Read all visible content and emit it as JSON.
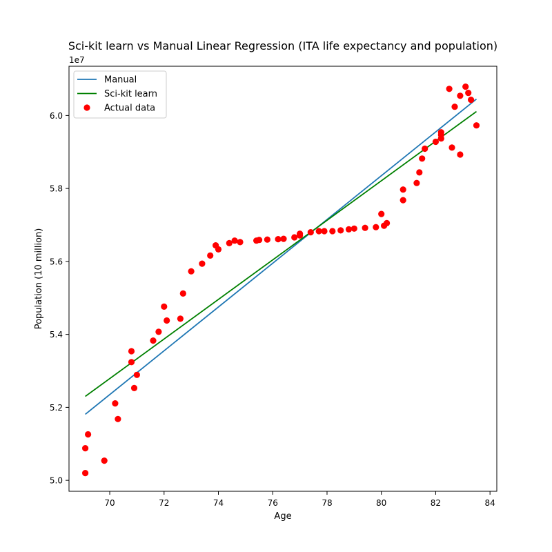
{
  "chart_data": {
    "type": "scatter",
    "title": "Sci-kit learn vs Manual Linear Regression (ITA life expectancy and population)",
    "xlabel": "Age",
    "ylabel": "Population (10 million)",
    "y_offset_label": "1e7",
    "xlim": [
      68.5,
      84.25
    ],
    "ylim": [
      4.97,
      6.135
    ],
    "x_ticks": [
      70,
      72,
      74,
      76,
      78,
      80,
      82,
      84
    ],
    "x_tick_labels": [
      "70",
      "72",
      "74",
      "76",
      "78",
      "80",
      "82",
      "84"
    ],
    "y_ticks": [
      5.0,
      5.2,
      5.4,
      5.6,
      5.8,
      6.0
    ],
    "y_tick_labels": [
      "5.0",
      "5.2",
      "5.4",
      "5.6",
      "5.8",
      "6.0"
    ],
    "grid": false,
    "legend_position": "top-left",
    "series": [
      {
        "name": "Manual",
        "kind": "line",
        "color": "#1f77b4",
        "x": [
          69.1,
          83.5
        ],
        "y": [
          5.181,
          6.045
        ]
      },
      {
        "name": "Sci-kit learn",
        "kind": "line",
        "color": "#008000",
        "x": [
          69.1,
          83.5
        ],
        "y": [
          5.23,
          6.011
        ]
      },
      {
        "name": "Actual data",
        "kind": "scatter",
        "color": "#ff0000",
        "x": [
          69.1,
          69.1,
          69.2,
          69.8,
          70.2,
          70.3,
          70.8,
          70.8,
          70.9,
          71.0,
          71.6,
          71.8,
          72.0,
          72.1,
          72.6,
          72.7,
          73.0,
          73.4,
          73.7,
          73.9,
          74.0,
          74.4,
          74.6,
          74.8,
          75.4,
          75.5,
          75.8,
          76.2,
          76.4,
          76.8,
          77.0,
          77.0,
          77.4,
          77.7,
          77.9,
          78.2,
          78.5,
          78.8,
          79.0,
          79.4,
          79.8,
          80.0,
          80.1,
          80.2,
          80.8,
          80.8,
          81.3,
          81.4,
          81.5,
          81.6,
          82.0,
          82.2,
          82.2,
          82.2,
          82.5,
          82.6,
          82.7,
          82.9,
          82.9,
          83.1,
          83.2,
          83.3,
          83.5
        ],
        "y": [
          5.02,
          5.088,
          5.126,
          5.054,
          5.211,
          5.168,
          5.354,
          5.324,
          5.253,
          5.289,
          5.383,
          5.407,
          5.476,
          5.438,
          5.443,
          5.512,
          5.573,
          5.594,
          5.616,
          5.644,
          5.633,
          5.65,
          5.657,
          5.653,
          5.657,
          5.659,
          5.66,
          5.661,
          5.662,
          5.666,
          5.671,
          5.676,
          5.68,
          5.683,
          5.683,
          5.683,
          5.685,
          5.688,
          5.69,
          5.692,
          5.694,
          5.73,
          5.698,
          5.705,
          5.768,
          5.797,
          5.815,
          5.844,
          5.882,
          5.909,
          5.928,
          5.937,
          5.947,
          5.954,
          6.073,
          5.912,
          6.024,
          5.893,
          6.054,
          6.079,
          6.062,
          6.043,
          5.973
        ]
      }
    ]
  }
}
